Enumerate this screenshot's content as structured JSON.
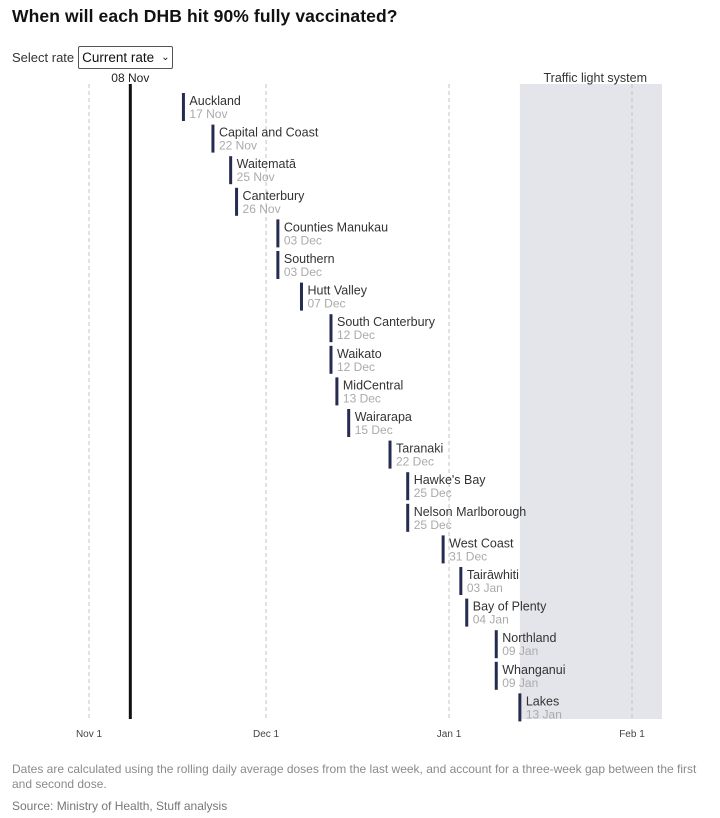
{
  "title": "When will each DHB hit 90% fully vaccinated?",
  "controls": {
    "select_label": "Select rate",
    "selected_rate": "Current rate"
  },
  "chart_data": {
    "type": "timeline",
    "title": "When will each DHB hit 90% fully vaccinated?",
    "x_axis": {
      "domain": [
        "2021-11-01",
        "2022-02-04"
      ],
      "ticks": [
        {
          "date": "2021-11-01",
          "label": "Nov 1"
        },
        {
          "date": "2021-12-01",
          "label": "Dec 1"
        },
        {
          "date": "2022-01-01",
          "label": "Jan 1"
        },
        {
          "date": "2022-02-01",
          "label": "Feb 1"
        }
      ]
    },
    "today_marker": {
      "date": "2021-11-08",
      "label": "08 Nov"
    },
    "shaded_region": {
      "start": "2022-01-13",
      "end": "2022-02-05",
      "label": "Traffic light system",
      "color": "#e4e5ea"
    },
    "bar_color": "#252c50",
    "points": [
      {
        "dhb": "Auckland",
        "date": "2021-11-17",
        "label": "17 Nov"
      },
      {
        "dhb": "Capital and Coast",
        "date": "2021-11-22",
        "label": "22 Nov"
      },
      {
        "dhb": "Waitematā",
        "date": "2021-11-25",
        "label": "25 Nov"
      },
      {
        "dhb": "Canterbury",
        "date": "2021-11-26",
        "label": "26 Nov"
      },
      {
        "dhb": "Counties Manukau",
        "date": "2021-12-03",
        "label": "03 Dec"
      },
      {
        "dhb": "Southern",
        "date": "2021-12-03",
        "label": "03 Dec"
      },
      {
        "dhb": "Hutt Valley",
        "date": "2021-12-07",
        "label": "07 Dec"
      },
      {
        "dhb": "South Canterbury",
        "date": "2021-12-12",
        "label": "12 Dec"
      },
      {
        "dhb": "Waikato",
        "date": "2021-12-12",
        "label": "12 Dec"
      },
      {
        "dhb": "MidCentral",
        "date": "2021-12-13",
        "label": "13 Dec"
      },
      {
        "dhb": "Wairarapa",
        "date": "2021-12-15",
        "label": "15 Dec"
      },
      {
        "dhb": "Taranaki",
        "date": "2021-12-22",
        "label": "22 Dec"
      },
      {
        "dhb": "Hawke's Bay",
        "date": "2021-12-25",
        "label": "25 Dec"
      },
      {
        "dhb": "Nelson Marlborough",
        "date": "2021-12-25",
        "label": "25 Dec"
      },
      {
        "dhb": "West Coast",
        "date": "2021-12-31",
        "label": "31 Dec"
      },
      {
        "dhb": "Tairāwhiti",
        "date": "2022-01-03",
        "label": "03 Jan"
      },
      {
        "dhb": "Bay of Plenty",
        "date": "2022-01-04",
        "label": "04 Jan"
      },
      {
        "dhb": "Northland",
        "date": "2022-01-09",
        "label": "09 Jan"
      },
      {
        "dhb": "Whanganui",
        "date": "2022-01-09",
        "label": "09 Jan"
      },
      {
        "dhb": "Lakes",
        "date": "2022-01-13",
        "label": "13 Jan"
      }
    ]
  },
  "footnote": "Dates are calculated using the rolling daily average doses from the last week, and account for a three-week gap between the first and second dose.",
  "source": "Source: Ministry of Health, Stuff analysis"
}
